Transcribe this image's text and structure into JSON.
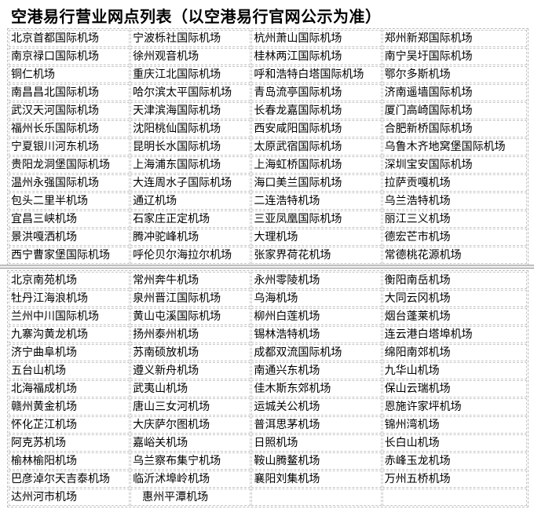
{
  "title": "空港易行营业网点列表（以空港易行官网公示为准）",
  "table1": [
    [
      "北京首都国际机场",
      "宁波栎社国际机场",
      "杭州萧山国际机场",
      "郑州新郑国际机场"
    ],
    [
      "南京禄口国际机场",
      "徐州观音机场",
      "桂林两江国际机场",
      "南宁吴圩国际机场"
    ],
    [
      "铜仁机场",
      "重庆江北国际机场",
      "呼和浩特白塔国际机场",
      "鄂尔多斯机场"
    ],
    [
      "南昌昌北国际机场",
      "哈尔滨太平国际机场",
      "青岛流亭国际机场",
      "济南遥墙国际机场"
    ],
    [
      "武汉天河国际机场",
      "天津滨海国际机场",
      "长春龙嘉国际机场",
      "厦门高崎国际机场"
    ],
    [
      "福州长乐国际机场",
      "沈阳桃仙国际机场",
      "西安咸阳国际机场",
      "合肥新桥国际机场"
    ],
    [
      "宁夏银川河东机场",
      "昆明长水国际机场",
      "太原武宿国际机场",
      "乌鲁木齐地窝堡国际机场"
    ],
    [
      "贵阳龙洞堡国际机场",
      "上海浦东国际机场",
      "上海虹桥国际机场",
      "深圳宝安国际机场"
    ],
    [
      "温州永强国际机场",
      "大连周水子国际机场",
      "海口美兰国际机场",
      "拉萨贡嘎机场"
    ],
    [
      "包头二里半机场",
      "通辽机场",
      "二连浩特机场",
      "乌兰浩特机场"
    ],
    [
      "宜昌三峡机场",
      "石家庄正定机场",
      "三亚凤凰国际机场",
      "丽江三义机场"
    ],
    [
      "景洪嘎洒机场",
      "腾冲驼峰机场",
      "大理机场",
      "德宏芒市机场"
    ],
    [
      "西宁曹家堡国际机场",
      "呼伦贝尔海拉尔机场",
      "张家界荷花机场",
      "常德桃花源机场"
    ]
  ],
  "table2": [
    [
      "北京南苑机场",
      "常州奔牛机场",
      "永州零陵机场",
      "衡阳南岳机场"
    ],
    [
      "牡丹江海浪机场",
      "泉州晋江国际机场",
      "乌海机场",
      "大同云冈机场"
    ],
    [
      "兰州中川国际机场",
      "黄山屯溪国际机场",
      "柳州白莲机场",
      "烟台蓬莱机场"
    ],
    [
      "九寨沟黄龙机场",
      "扬州泰州机场",
      "锡林浩特机场",
      "连云港白塔埠机场"
    ],
    [
      "济宁曲阜机场",
      "苏南硕放机场",
      "成都双流国际机场",
      "绵阳南郊机场"
    ],
    [
      "五台山机场",
      "遵义新舟机场",
      "南通兴东机场",
      "九华山机场"
    ],
    [
      "北海福成机场",
      "武夷山机场",
      "佳木斯东郊机场",
      "保山云瑞机场"
    ],
    [
      "赣州黄金机场",
      "唐山三女河机场",
      "运城关公机场",
      "恩施许家坪机场"
    ],
    [
      "怀化芷江机场",
      "大庆萨尔图机场",
      "普洱思茅机场",
      "锦州湾机场"
    ],
    [
      "阿克苏机场",
      "嘉峪关机场",
      "日照机场",
      "长白山机场"
    ],
    [
      "榆林榆阳机场",
      "乌兰察布集宁机场",
      "鞍山腾鳌机场",
      "赤峰玉龙机场"
    ],
    [
      "巴彦淖尔天吉泰机场",
      "临沂沭埠岭机场",
      "襄阳刘集机场",
      "万州五桥机场"
    ],
    [
      "达州河市机场",
      "惠州平潭机场",
      "",
      ""
    ]
  ]
}
